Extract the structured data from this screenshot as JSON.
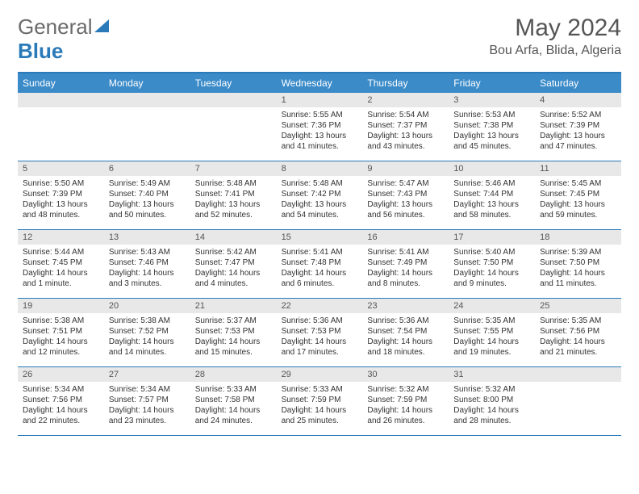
{
  "brand": {
    "part1": "General",
    "part2": "Blue"
  },
  "title": "May 2024",
  "location": "Bou Arfa, Blida, Algeria",
  "colors": {
    "header_bg": "#3b8bc9",
    "border": "#2a7ab9",
    "daynum_bg": "#e8e8e8",
    "text": "#333333"
  },
  "day_names": [
    "Sunday",
    "Monday",
    "Tuesday",
    "Wednesday",
    "Thursday",
    "Friday",
    "Saturday"
  ],
  "weeks": [
    [
      {
        "n": "",
        "sr": "",
        "ss": "",
        "dl": ""
      },
      {
        "n": "",
        "sr": "",
        "ss": "",
        "dl": ""
      },
      {
        "n": "",
        "sr": "",
        "ss": "",
        "dl": ""
      },
      {
        "n": "1",
        "sr": "Sunrise: 5:55 AM",
        "ss": "Sunset: 7:36 PM",
        "dl": "Daylight: 13 hours and 41 minutes."
      },
      {
        "n": "2",
        "sr": "Sunrise: 5:54 AM",
        "ss": "Sunset: 7:37 PM",
        "dl": "Daylight: 13 hours and 43 minutes."
      },
      {
        "n": "3",
        "sr": "Sunrise: 5:53 AM",
        "ss": "Sunset: 7:38 PM",
        "dl": "Daylight: 13 hours and 45 minutes."
      },
      {
        "n": "4",
        "sr": "Sunrise: 5:52 AM",
        "ss": "Sunset: 7:39 PM",
        "dl": "Daylight: 13 hours and 47 minutes."
      }
    ],
    [
      {
        "n": "5",
        "sr": "Sunrise: 5:50 AM",
        "ss": "Sunset: 7:39 PM",
        "dl": "Daylight: 13 hours and 48 minutes."
      },
      {
        "n": "6",
        "sr": "Sunrise: 5:49 AM",
        "ss": "Sunset: 7:40 PM",
        "dl": "Daylight: 13 hours and 50 minutes."
      },
      {
        "n": "7",
        "sr": "Sunrise: 5:48 AM",
        "ss": "Sunset: 7:41 PM",
        "dl": "Daylight: 13 hours and 52 minutes."
      },
      {
        "n": "8",
        "sr": "Sunrise: 5:48 AM",
        "ss": "Sunset: 7:42 PM",
        "dl": "Daylight: 13 hours and 54 minutes."
      },
      {
        "n": "9",
        "sr": "Sunrise: 5:47 AM",
        "ss": "Sunset: 7:43 PM",
        "dl": "Daylight: 13 hours and 56 minutes."
      },
      {
        "n": "10",
        "sr": "Sunrise: 5:46 AM",
        "ss": "Sunset: 7:44 PM",
        "dl": "Daylight: 13 hours and 58 minutes."
      },
      {
        "n": "11",
        "sr": "Sunrise: 5:45 AM",
        "ss": "Sunset: 7:45 PM",
        "dl": "Daylight: 13 hours and 59 minutes."
      }
    ],
    [
      {
        "n": "12",
        "sr": "Sunrise: 5:44 AM",
        "ss": "Sunset: 7:45 PM",
        "dl": "Daylight: 14 hours and 1 minute."
      },
      {
        "n": "13",
        "sr": "Sunrise: 5:43 AM",
        "ss": "Sunset: 7:46 PM",
        "dl": "Daylight: 14 hours and 3 minutes."
      },
      {
        "n": "14",
        "sr": "Sunrise: 5:42 AM",
        "ss": "Sunset: 7:47 PM",
        "dl": "Daylight: 14 hours and 4 minutes."
      },
      {
        "n": "15",
        "sr": "Sunrise: 5:41 AM",
        "ss": "Sunset: 7:48 PM",
        "dl": "Daylight: 14 hours and 6 minutes."
      },
      {
        "n": "16",
        "sr": "Sunrise: 5:41 AM",
        "ss": "Sunset: 7:49 PM",
        "dl": "Daylight: 14 hours and 8 minutes."
      },
      {
        "n": "17",
        "sr": "Sunrise: 5:40 AM",
        "ss": "Sunset: 7:50 PM",
        "dl": "Daylight: 14 hours and 9 minutes."
      },
      {
        "n": "18",
        "sr": "Sunrise: 5:39 AM",
        "ss": "Sunset: 7:50 PM",
        "dl": "Daylight: 14 hours and 11 minutes."
      }
    ],
    [
      {
        "n": "19",
        "sr": "Sunrise: 5:38 AM",
        "ss": "Sunset: 7:51 PM",
        "dl": "Daylight: 14 hours and 12 minutes."
      },
      {
        "n": "20",
        "sr": "Sunrise: 5:38 AM",
        "ss": "Sunset: 7:52 PM",
        "dl": "Daylight: 14 hours and 14 minutes."
      },
      {
        "n": "21",
        "sr": "Sunrise: 5:37 AM",
        "ss": "Sunset: 7:53 PM",
        "dl": "Daylight: 14 hours and 15 minutes."
      },
      {
        "n": "22",
        "sr": "Sunrise: 5:36 AM",
        "ss": "Sunset: 7:53 PM",
        "dl": "Daylight: 14 hours and 17 minutes."
      },
      {
        "n": "23",
        "sr": "Sunrise: 5:36 AM",
        "ss": "Sunset: 7:54 PM",
        "dl": "Daylight: 14 hours and 18 minutes."
      },
      {
        "n": "24",
        "sr": "Sunrise: 5:35 AM",
        "ss": "Sunset: 7:55 PM",
        "dl": "Daylight: 14 hours and 19 minutes."
      },
      {
        "n": "25",
        "sr": "Sunrise: 5:35 AM",
        "ss": "Sunset: 7:56 PM",
        "dl": "Daylight: 14 hours and 21 minutes."
      }
    ],
    [
      {
        "n": "26",
        "sr": "Sunrise: 5:34 AM",
        "ss": "Sunset: 7:56 PM",
        "dl": "Daylight: 14 hours and 22 minutes."
      },
      {
        "n": "27",
        "sr": "Sunrise: 5:34 AM",
        "ss": "Sunset: 7:57 PM",
        "dl": "Daylight: 14 hours and 23 minutes."
      },
      {
        "n": "28",
        "sr": "Sunrise: 5:33 AM",
        "ss": "Sunset: 7:58 PM",
        "dl": "Daylight: 14 hours and 24 minutes."
      },
      {
        "n": "29",
        "sr": "Sunrise: 5:33 AM",
        "ss": "Sunset: 7:59 PM",
        "dl": "Daylight: 14 hours and 25 minutes."
      },
      {
        "n": "30",
        "sr": "Sunrise: 5:32 AM",
        "ss": "Sunset: 7:59 PM",
        "dl": "Daylight: 14 hours and 26 minutes."
      },
      {
        "n": "31",
        "sr": "Sunrise: 5:32 AM",
        "ss": "Sunset: 8:00 PM",
        "dl": "Daylight: 14 hours and 28 minutes."
      },
      {
        "n": "",
        "sr": "",
        "ss": "",
        "dl": ""
      }
    ]
  ]
}
